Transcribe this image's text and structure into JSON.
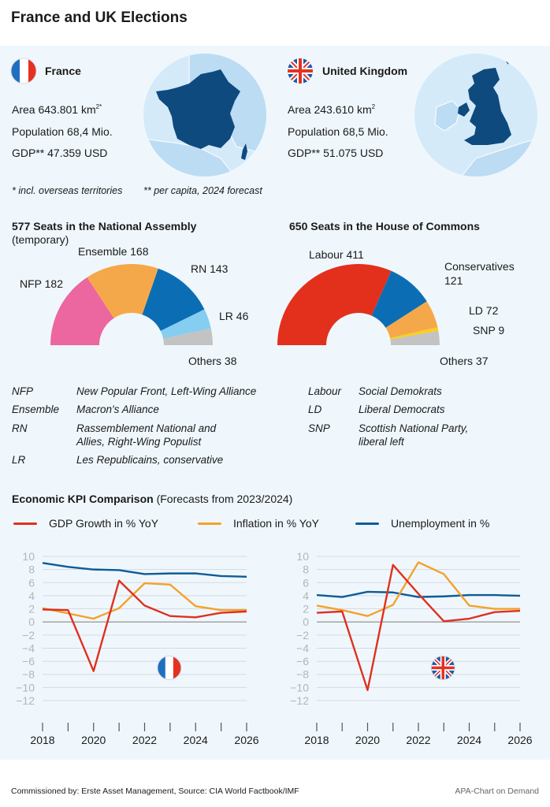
{
  "header": {
    "title": "France and UK Elections"
  },
  "colors": {
    "gdp": "#e0301e",
    "inflation": "#f5a12a",
    "unemployment": "#0e5c96",
    "panel_bg": "#eff7fd",
    "map_sea": "#d4eaf9",
    "map_land": "#bcdcf3",
    "map_country": "#0e4a7e"
  },
  "france": {
    "name": "France",
    "flag_icon": "france-flag-icon",
    "area_label": "Area 643.801 km",
    "area_sup": "2*",
    "population": "Population 68,4 Mio.",
    "gdp": "GDP** 47.359 USD"
  },
  "uk": {
    "name": "United Kingdom",
    "flag_icon": "uk-flag-icon",
    "area_label": "Area 243.610 km",
    "area_sup": "2",
    "population": "Population 68,5 Mio.",
    "gdp": "GDP** 51.075 USD"
  },
  "footnotes": {
    "star": "* incl. overseas territories",
    "double_star": "**  per capita, 2024 forecast"
  },
  "seats_france": {
    "title": "577 Seats in the National Assembly",
    "subtitle": "(temporary)",
    "total": 577,
    "parties": [
      {
        "name": "NFP",
        "seats": 182,
        "label": "NFP 182",
        "color": "#ec66a0"
      },
      {
        "name": "Ensemble",
        "seats": 168,
        "label": "Ensemble 168",
        "color": "#f5a84a"
      },
      {
        "name": "RN",
        "seats": 143,
        "label": "RN 143",
        "color": "#0b6eb4"
      },
      {
        "name": "LR",
        "seats": 46,
        "label": "LR 46",
        "color": "#86cdf2"
      },
      {
        "name": "Others",
        "seats": 38,
        "label": "Others 38",
        "color": "#c3c3c3"
      }
    ]
  },
  "seats_uk": {
    "title": "650 Seats in the House of Commons",
    "total": 650,
    "parties": [
      {
        "name": "Labour",
        "seats": 411,
        "label": "Labour 411",
        "color": "#e3301c"
      },
      {
        "name": "Conservatives",
        "seats": 121,
        "label": "Conservatives",
        "label2": "121",
        "color": "#0b6eb4"
      },
      {
        "name": "LD",
        "seats": 72,
        "label": "LD 72",
        "color": "#f5a84a"
      },
      {
        "name": "SNP",
        "seats": 9,
        "label": "SNP 9",
        "color": "#fbd017"
      },
      {
        "name": "Others",
        "seats": 37,
        "label": "Others 37",
        "color": "#c3c3c3"
      }
    ]
  },
  "glossary_france": [
    {
      "abbr": "NFP",
      "desc": "New Popular Front, Left-Wing Alliance"
    },
    {
      "abbr": "Ensemble",
      "desc": "Macron's Alliance"
    },
    {
      "abbr": "RN",
      "desc": "Rassemblement National and",
      "desc2": "Allies, Right-Wing Populist"
    },
    {
      "abbr": "LR",
      "desc": "Les Republicains, conservative"
    }
  ],
  "glossary_uk": [
    {
      "abbr": "Labour",
      "desc": "Social Demokrats"
    },
    {
      "abbr": "LD",
      "desc": "Liberal Democrats"
    },
    {
      "abbr": "SNP",
      "desc": "Scottish National Party,",
      "desc2": "liberal left"
    }
  ],
  "kpi": {
    "title_bold": "Economic KPI Comparison",
    "title_rest": " (Forecasts from 2023/2024)",
    "legend": [
      {
        "key": "gdp",
        "label": "GDP Growth in % YoY"
      },
      {
        "key": "inflation",
        "label": "Inflation in % YoY"
      },
      {
        "key": "unemployment",
        "label": "Unemployment in %"
      }
    ]
  },
  "chart_data": [
    {
      "type": "line",
      "title": "France",
      "flag_icon": "france-flag-icon",
      "x": [
        2018,
        2019,
        2020,
        2021,
        2022,
        2023,
        2024,
        2025,
        2026
      ],
      "xticks_labeled": [
        "2018",
        "2020",
        "2022",
        "2024",
        "2026"
      ],
      "yticks": [
        10,
        8,
        6,
        4,
        2,
        0,
        -2,
        -4,
        -6,
        -8,
        -10,
        -12
      ],
      "ytick_labels": [
        "10",
        "8",
        "6",
        "4",
        "2",
        "0",
        "−2",
        "−4",
        "−6",
        "−8",
        "−10",
        "−12"
      ],
      "ylim": [
        -12,
        10
      ],
      "grid": true,
      "legend": "top",
      "series": [
        {
          "name": "GDP Growth in % YoY",
          "key": "gdp",
          "values": [
            1.9,
            1.8,
            -7.5,
            6.3,
            2.5,
            0.9,
            0.7,
            1.4,
            1.6
          ]
        },
        {
          "name": "Inflation in % YoY",
          "key": "inflation",
          "values": [
            2.1,
            1.3,
            0.5,
            2.1,
            5.9,
            5.7,
            2.4,
            1.8,
            1.8
          ]
        },
        {
          "name": "Unemployment in %",
          "key": "unemployment",
          "values": [
            9.0,
            8.4,
            8.0,
            7.9,
            7.3,
            7.4,
            7.4,
            7.0,
            6.9
          ]
        }
      ]
    },
    {
      "type": "line",
      "title": "United Kingdom",
      "flag_icon": "uk-flag-icon",
      "x": [
        2018,
        2019,
        2020,
        2021,
        2022,
        2023,
        2024,
        2025,
        2026
      ],
      "xticks_labeled": [
        "2018",
        "2020",
        "2022",
        "2024",
        "2026"
      ],
      "yticks": [
        10,
        8,
        6,
        4,
        2,
        0,
        -2,
        -4,
        -6,
        -8,
        -10,
        -12
      ],
      "ytick_labels": [
        "10",
        "8",
        "6",
        "4",
        "2",
        "0",
        "−2",
        "−4",
        "−6",
        "−8",
        "−10",
        "−12"
      ],
      "ylim": [
        -12,
        10
      ],
      "grid": true,
      "legend": "top",
      "series": [
        {
          "name": "GDP Growth in % YoY",
          "key": "gdp",
          "values": [
            1.4,
            1.6,
            -10.4,
            8.7,
            4.3,
            0.1,
            0.5,
            1.5,
            1.7
          ]
        },
        {
          "name": "Inflation in % YoY",
          "key": "inflation",
          "values": [
            2.5,
            1.8,
            0.9,
            2.6,
            9.1,
            7.3,
            2.5,
            2.0,
            2.0
          ]
        },
        {
          "name": "Unemployment in %",
          "key": "unemployment",
          "values": [
            4.1,
            3.8,
            4.6,
            4.5,
            3.8,
            3.9,
            4.1,
            4.1,
            4.0
          ]
        }
      ]
    }
  ],
  "footer": {
    "source": "Commissioned by: Erste Asset Management, Source: CIA World Factbook/IMF",
    "credit": "APA-Chart on Demand"
  }
}
